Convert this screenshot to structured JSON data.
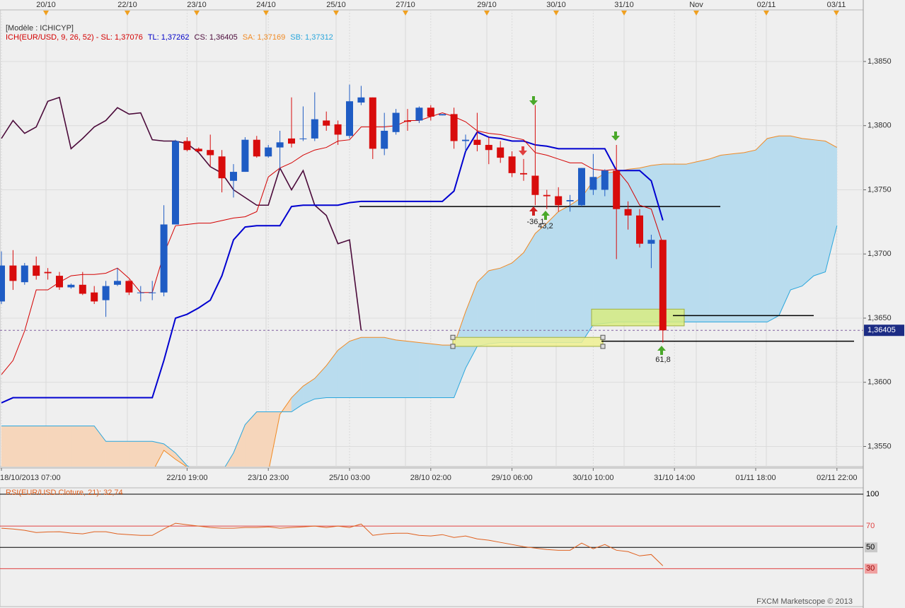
{
  "chart_data": {
    "type": "candlestick",
    "model": "[Modèle : ICHICYP]",
    "indicator_legend": [
      {
        "text": "ICH(EUR/USD, 9, 26, 52) -  SL: 1,37076",
        "color": "#d40000"
      },
      {
        "text": "TL: 1,37262",
        "color": "#0000c8"
      },
      {
        "text": "CS: 1,36405",
        "color": "#4b0a3a"
      },
      {
        "text": "SA: 1,37169",
        "color": "#f08a24"
      },
      {
        "text": "SB: 1,37312",
        "color": "#2aa6dc"
      }
    ],
    "top_dates": [
      "20/10",
      "22/10",
      "23/10",
      "24/10",
      "25/10",
      "27/10",
      "29/10",
      "30/10",
      "31/10",
      "Nov",
      "02/11",
      "03/11"
    ],
    "categories": [
      "18/10/2013 07:00",
      null,
      null,
      null,
      null,
      null,
      null,
      null,
      null,
      null,
      null,
      null,
      null,
      null,
      null,
      null,
      "22/10 19:00",
      null,
      null,
      null,
      null,
      null,
      null,
      "23/10 23:00",
      null,
      null,
      null,
      null,
      null,
      null,
      "25/10 03:00",
      null,
      null,
      null,
      null,
      null,
      null,
      "28/10 02:00",
      null,
      null,
      null,
      null,
      null,
      null,
      "29/10 06:00",
      null,
      null,
      null,
      null,
      null,
      null,
      "30/10 10:00",
      null,
      null,
      null,
      null,
      null,
      null,
      "31/10 14:00",
      null,
      null,
      null,
      null,
      null,
      null,
      "01/11 18:00",
      null,
      null,
      null,
      null,
      null,
      null,
      "02/11 22:00"
    ],
    "open": [
      1.3663,
      1.3691,
      1.3678,
      1.3691,
      1.3686,
      1.3683,
      1.3674,
      1.3676,
      1.367,
      1.3664,
      1.3676,
      1.3679,
      1.367,
      1.367,
      1.367,
      1.3723,
      1.3788,
      1.3782,
      1.3781,
      1.3776,
      1.3757,
      1.3764,
      1.3789,
      1.3776,
      1.3783,
      1.379,
      1.379,
      1.379,
      1.3804,
      1.3801,
      1.3792,
      1.3818,
      1.3822,
      1.3782,
      1.3795,
      1.3804,
      1.3804,
      1.3814,
      1.3808,
      1.3809,
      1.3788,
      1.3789,
      1.3785,
      1.3783,
      1.3776,
      1.3763,
      1.3761,
      1.3746,
      1.3745,
      1.3741,
      1.3738,
      1.375,
      1.375,
      1.3765,
      1.3735,
      1.373,
      1.3708,
      1.3711,
      null,
      null,
      null,
      null,
      null,
      null,
      null,
      null,
      null,
      null,
      null,
      null,
      null,
      null,
      null
    ],
    "high": [
      1.3702,
      1.3703,
      1.3693,
      1.3698,
      1.3689,
      1.3686,
      1.3677,
      1.3686,
      1.3675,
      1.3679,
      1.3689,
      1.368,
      1.3675,
      1.3679,
      1.3738,
      1.3789,
      1.3791,
      1.3783,
      1.3793,
      1.3781,
      1.377,
      1.3791,
      1.3792,
      1.3785,
      1.3796,
      1.3822,
      1.3815,
      1.3826,
      1.3811,
      1.3804,
      1.3832,
      1.3831,
      1.3822,
      1.381,
      1.3813,
      1.3813,
      1.3815,
      1.3816,
      1.3809,
      1.3814,
      1.3793,
      1.381,
      1.3791,
      1.3788,
      1.378,
      1.3774,
      1.3816,
      1.375,
      1.3752,
      1.3746,
      1.3767,
      1.3778,
      1.3766,
      1.3785,
      1.3741,
      1.3735,
      1.3715,
      1.3711,
      null,
      null,
      null,
      null,
      null,
      null,
      null,
      null,
      null,
      null,
      null,
      null,
      null,
      null,
      null
    ],
    "low": [
      1.3661,
      1.3672,
      1.3676,
      1.368,
      1.368,
      1.3672,
      1.3673,
      1.3668,
      1.3661,
      1.3651,
      1.3675,
      1.3668,
      1.3663,
      1.3664,
      1.3667,
      1.3723,
      1.378,
      1.3779,
      1.3768,
      1.3748,
      1.3744,
      1.3764,
      1.3775,
      1.3775,
      1.3766,
      1.3783,
      1.3788,
      1.3788,
      1.3796,
      1.3785,
      1.379,
      1.3816,
      1.3774,
      1.3777,
      1.3793,
      1.3796,
      1.3802,
      1.3804,
      1.3808,
      1.3782,
      1.378,
      1.378,
      1.377,
      1.3771,
      1.376,
      1.3757,
      1.3738,
      1.3735,
      1.3733,
      1.3733,
      1.3737,
      1.3746,
      1.3745,
      1.3696,
      1.3719,
      1.3705,
      1.3689,
      1.3631,
      null,
      null,
      null,
      null,
      null,
      null,
      null,
      null,
      null,
      null,
      null,
      null,
      null,
      null,
      null
    ],
    "close": [
      1.3691,
      1.3679,
      1.3691,
      1.3683,
      1.3685,
      1.3674,
      1.3676,
      1.3669,
      1.3663,
      1.3675,
      1.3679,
      1.367,
      1.367,
      1.367,
      1.3723,
      1.3788,
      1.3781,
      1.378,
      1.3777,
      1.3759,
      1.3764,
      1.3789,
      1.3776,
      1.3783,
      1.3787,
      1.3786,
      1.379,
      1.3805,
      1.38,
      1.3793,
      1.3819,
      1.3822,
      1.3782,
      1.3796,
      1.381,
      1.3803,
      1.3814,
      1.3807,
      1.3809,
      1.3788,
      1.3789,
      1.3785,
      1.3781,
      1.3775,
      1.3763,
      1.3762,
      1.3746,
      1.3745,
      1.3738,
      1.3742,
      1.3767,
      1.376,
      1.3765,
      1.3735,
      1.373,
      1.3708,
      1.3711,
      1.36405,
      null,
      null,
      null,
      null,
      null,
      null,
      null,
      null,
      null,
      null,
      null,
      null,
      null,
      null,
      null
    ],
    "up_color": "#1f5cc4",
    "down_color": "#d80c0c",
    "tenkan": {
      "color": "#d40000",
      "values": [
        1.3606,
        1.3617,
        1.364,
        1.3672,
        1.3672,
        1.3678,
        1.3683,
        1.3684,
        1.3684,
        1.3685,
        1.3689,
        1.3681,
        1.367,
        1.367,
        1.37,
        1.3722,
        1.3723,
        1.3724,
        1.3724,
        1.3726,
        1.3728,
        1.3729,
        1.3733,
        1.376,
        1.3767,
        1.3771,
        1.3777,
        1.3781,
        1.3783,
        1.3788,
        1.3789,
        1.3799,
        1.3799,
        1.3799,
        1.38,
        1.3804,
        1.3804,
        1.3807,
        1.381,
        1.3807,
        1.3803,
        1.3796,
        1.3794,
        1.3793,
        1.3791,
        1.3789,
        1.3779,
        1.3777,
        1.3774,
        1.3771,
        1.3771,
        1.3766,
        1.3765,
        1.3766,
        1.3755,
        1.3738,
        1.3735,
        1.37076,
        null,
        null,
        null,
        null,
        null,
        null,
        null,
        null,
        null,
        null,
        null,
        null,
        null,
        null,
        null
      ]
    },
    "kijun": {
      "color": "#0000d0",
      "values": [
        1.3584,
        1.3588,
        1.3588,
        1.3588,
        1.3588,
        1.3588,
        1.3588,
        1.3588,
        1.3588,
        1.3588,
        1.3588,
        1.3588,
        1.3588,
        1.3588,
        1.3617,
        1.365,
        1.3653,
        1.3658,
        1.3664,
        1.3683,
        1.3711,
        1.3721,
        1.3722,
        1.3722,
        1.3722,
        1.3737,
        1.3738,
        1.3738,
        1.3738,
        1.3738,
        1.374,
        1.3741,
        1.3741,
        1.3741,
        1.3741,
        1.3741,
        1.3741,
        1.3741,
        1.3741,
        1.3749,
        1.378,
        1.3795,
        1.3791,
        1.379,
        1.3788,
        1.3788,
        1.3785,
        1.3784,
        1.3782,
        1.3782,
        1.3782,
        1.3782,
        1.3782,
        1.3765,
        1.3765,
        1.3765,
        1.3757,
        1.37262,
        null,
        null,
        null,
        null,
        null,
        null,
        null,
        null,
        null,
        null,
        null,
        null,
        null,
        null,
        null
      ]
    },
    "chikou": {
      "color": "#4b0a3a",
      "values": [
        1.379,
        1.3804,
        1.3794,
        1.3799,
        1.3819,
        1.3822,
        1.3782,
        1.379,
        1.3799,
        1.3804,
        1.3814,
        1.3809,
        1.381,
        1.3789,
        1.3788,
        1.3788,
        1.3786,
        1.3779,
        1.3768,
        1.3763,
        1.375,
        1.3744,
        1.3738,
        1.3738,
        1.3767,
        1.375,
        1.3765,
        1.3738,
        1.373,
        1.3708,
        1.3711,
        1.36405,
        null,
        null,
        null,
        null,
        null,
        null,
        null,
        null,
        null,
        null,
        null,
        null,
        null,
        null,
        null,
        null,
        null,
        null,
        null,
        null,
        null,
        null,
        null,
        null,
        null,
        null,
        null,
        null,
        null,
        null,
        null,
        null,
        null,
        null,
        null,
        null,
        null,
        null,
        null,
        null,
        null
      ]
    },
    "senkou_a": {
      "color": "#f08a24",
      "values": [
        1.353,
        1.353,
        1.353,
        1.353,
        1.353,
        1.353,
        1.353,
        1.353,
        1.353,
        1.353,
        1.353,
        1.353,
        1.353,
        1.353,
        1.3547,
        1.354,
        1.3534,
        1.3528,
        1.3528,
        1.3528,
        1.353,
        1.353,
        1.353,
        1.353,
        1.3575,
        1.3588,
        1.3597,
        1.3603,
        1.3613,
        1.3625,
        1.3632,
        1.3635,
        1.3635,
        1.3635,
        1.3633,
        1.3632,
        1.3631,
        1.363,
        1.3629,
        1.3629,
        1.3655,
        1.3678,
        1.3687,
        1.3689,
        1.3693,
        1.3701,
        1.3716,
        1.3724,
        1.3733,
        1.3738,
        1.3744,
        1.3757,
        1.3763,
        1.3764,
        1.3766,
        1.3767,
        1.3769,
        1.377,
        1.377,
        1.377,
        1.3772,
        1.3774,
        1.3777,
        1.3778,
        1.3779,
        1.3781,
        1.379,
        1.3792,
        1.3792,
        1.379,
        1.3789,
        1.3788,
        1.3783
      ]
    },
    "senkou_b": {
      "color": "#2aa6dc",
      "values": [
        1.3566,
        1.3566,
        1.3566,
        1.3566,
        1.3566,
        1.3566,
        1.3566,
        1.3566,
        1.3566,
        1.3554,
        1.3554,
        1.3554,
        1.3554,
        1.3554,
        1.3552,
        1.3545,
        1.3535,
        1.353,
        1.3528,
        1.353,
        1.3545,
        1.3567,
        1.3577,
        1.3577,
        1.3577,
        1.3577,
        1.3583,
        1.3587,
        1.3588,
        1.3588,
        1.3588,
        1.3588,
        1.3588,
        1.3588,
        1.3588,
        1.3588,
        1.3588,
        1.3588,
        1.3588,
        1.3588,
        1.3611,
        1.3628,
        1.363,
        1.3631,
        1.3631,
        1.3631,
        1.3631,
        1.3631,
        1.3631,
        1.3631,
        1.3631,
        1.3645,
        1.3646,
        1.3647,
        1.3647,
        1.3647,
        1.3647,
        1.3647,
        1.3647,
        1.3647,
        1.3647,
        1.3647,
        1.3647,
        1.3647,
        1.3647,
        1.3647,
        1.3647,
        1.3652,
        1.3672,
        1.3675,
        1.3683,
        1.3686,
        1.3722
      ]
    },
    "cloud_up_color": "#b9dcee",
    "cloud_down_color": "#f6d6bb",
    "ylim": [
      1.35343,
      1.38902
    ],
    "yticks": [
      {
        "value": 1.385,
        "label": "1,3850"
      },
      {
        "value": 1.38,
        "label": "1,3800"
      },
      {
        "value": 1.375,
        "label": "1,3750"
      },
      {
        "value": 1.37,
        "label": "1,3700"
      },
      {
        "value": 1.365,
        "label": "1,3650"
      },
      {
        "value": 1.36,
        "label": "1,3600"
      },
      {
        "value": 1.355,
        "label": "1,3550"
      }
    ],
    "grid": true,
    "last_price": {
      "value": 1.36405,
      "label": "1,36405"
    },
    "hlines": [
      1.3737,
      1.3652,
      1.3632
    ],
    "zones": [
      {
        "top": 1.3657,
        "bottom": 1.3644
      },
      {
        "top": 1.3635,
        "bottom": 1.3628
      }
    ],
    "signal_labels": [
      "-36,1",
      "43,2",
      "61,8"
    ],
    "rsi": {
      "title": "RSI(EUR/USD.Cloture, 21): 32,74",
      "color": "#e0601e",
      "values": [
        68.0,
        67.3,
        66.0,
        64.0,
        64.5,
        64.7,
        63.5,
        62.7,
        64.7,
        64.7,
        62.7,
        62.0,
        61.3,
        61.3,
        67.3,
        72.7,
        71.3,
        70.0,
        68.7,
        68.0,
        68.0,
        68.7,
        68.7,
        69.3,
        68.0,
        68.7,
        69.3,
        70.0,
        68.7,
        70.0,
        68.7,
        72.0,
        61.3,
        62.7,
        63.3,
        63.3,
        61.3,
        60.7,
        62.0,
        59.3,
        60.7,
        58.0,
        56.7,
        54.7,
        52.7,
        50.7,
        49.3,
        48.0,
        47.3,
        47.3,
        54.0,
        48.7,
        52.7,
        47.3,
        46.0,
        42.0,
        43.3,
        32.74,
        null,
        null,
        null,
        null,
        null,
        null,
        null,
        null,
        null,
        null,
        null,
        null,
        null,
        null,
        null
      ],
      "ylim": [
        -5,
        106
      ],
      "levels": [
        100,
        70,
        50,
        30
      ],
      "level_colors": [
        "#000000",
        "#e04040",
        "#000000",
        "#e04040"
      ]
    },
    "footer": "FXCM Marketscope © 2013"
  }
}
